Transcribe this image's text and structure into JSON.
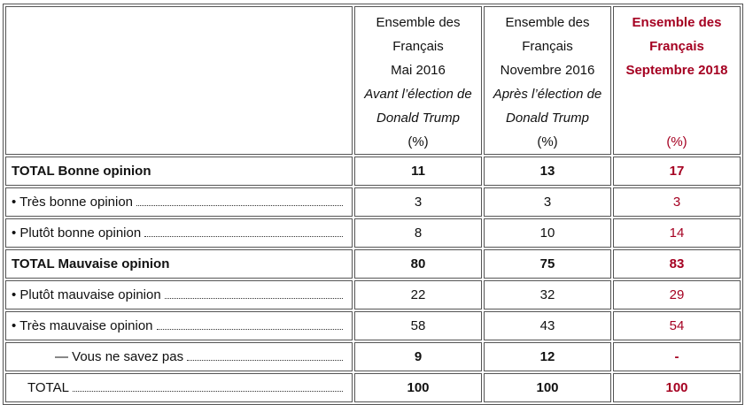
{
  "table": {
    "columns": [
      {
        "title": "Ensemble des Français",
        "date": "Mai 2016",
        "note": "Avant l’élection de Donald Trump",
        "unit": "(%)"
      },
      {
        "title": "Ensemble des Français",
        "date": "Novembre 2016",
        "note": "Après l’élection de Donald Trump",
        "unit": "(%)"
      },
      {
        "title": "Ensemble des Français",
        "date": "Septembre 2018",
        "unit": "(%)"
      }
    ],
    "rows": [
      {
        "label": "TOTAL Bonne opinion",
        "values": [
          11,
          13,
          17
        ]
      },
      {
        "label": "• Très bonne opinion",
        "values": [
          3,
          3,
          3
        ]
      },
      {
        "label": "• Plutôt bonne opinion",
        "values": [
          8,
          10,
          14
        ]
      },
      {
        "label": "TOTAL Mauvaise opinion",
        "values": [
          80,
          75,
          83
        ]
      },
      {
        "label": "• Plutôt mauvaise opinion",
        "values": [
          22,
          32,
          29
        ]
      },
      {
        "label": "• Très mauvaise opinion",
        "values": [
          58,
          43,
          54
        ]
      },
      {
        "label": "— Vous ne savez pas",
        "values": [
          9,
          12,
          "-"
        ]
      },
      {
        "label": "TOTAL",
        "values": [
          100,
          100,
          100
        ]
      }
    ]
  }
}
